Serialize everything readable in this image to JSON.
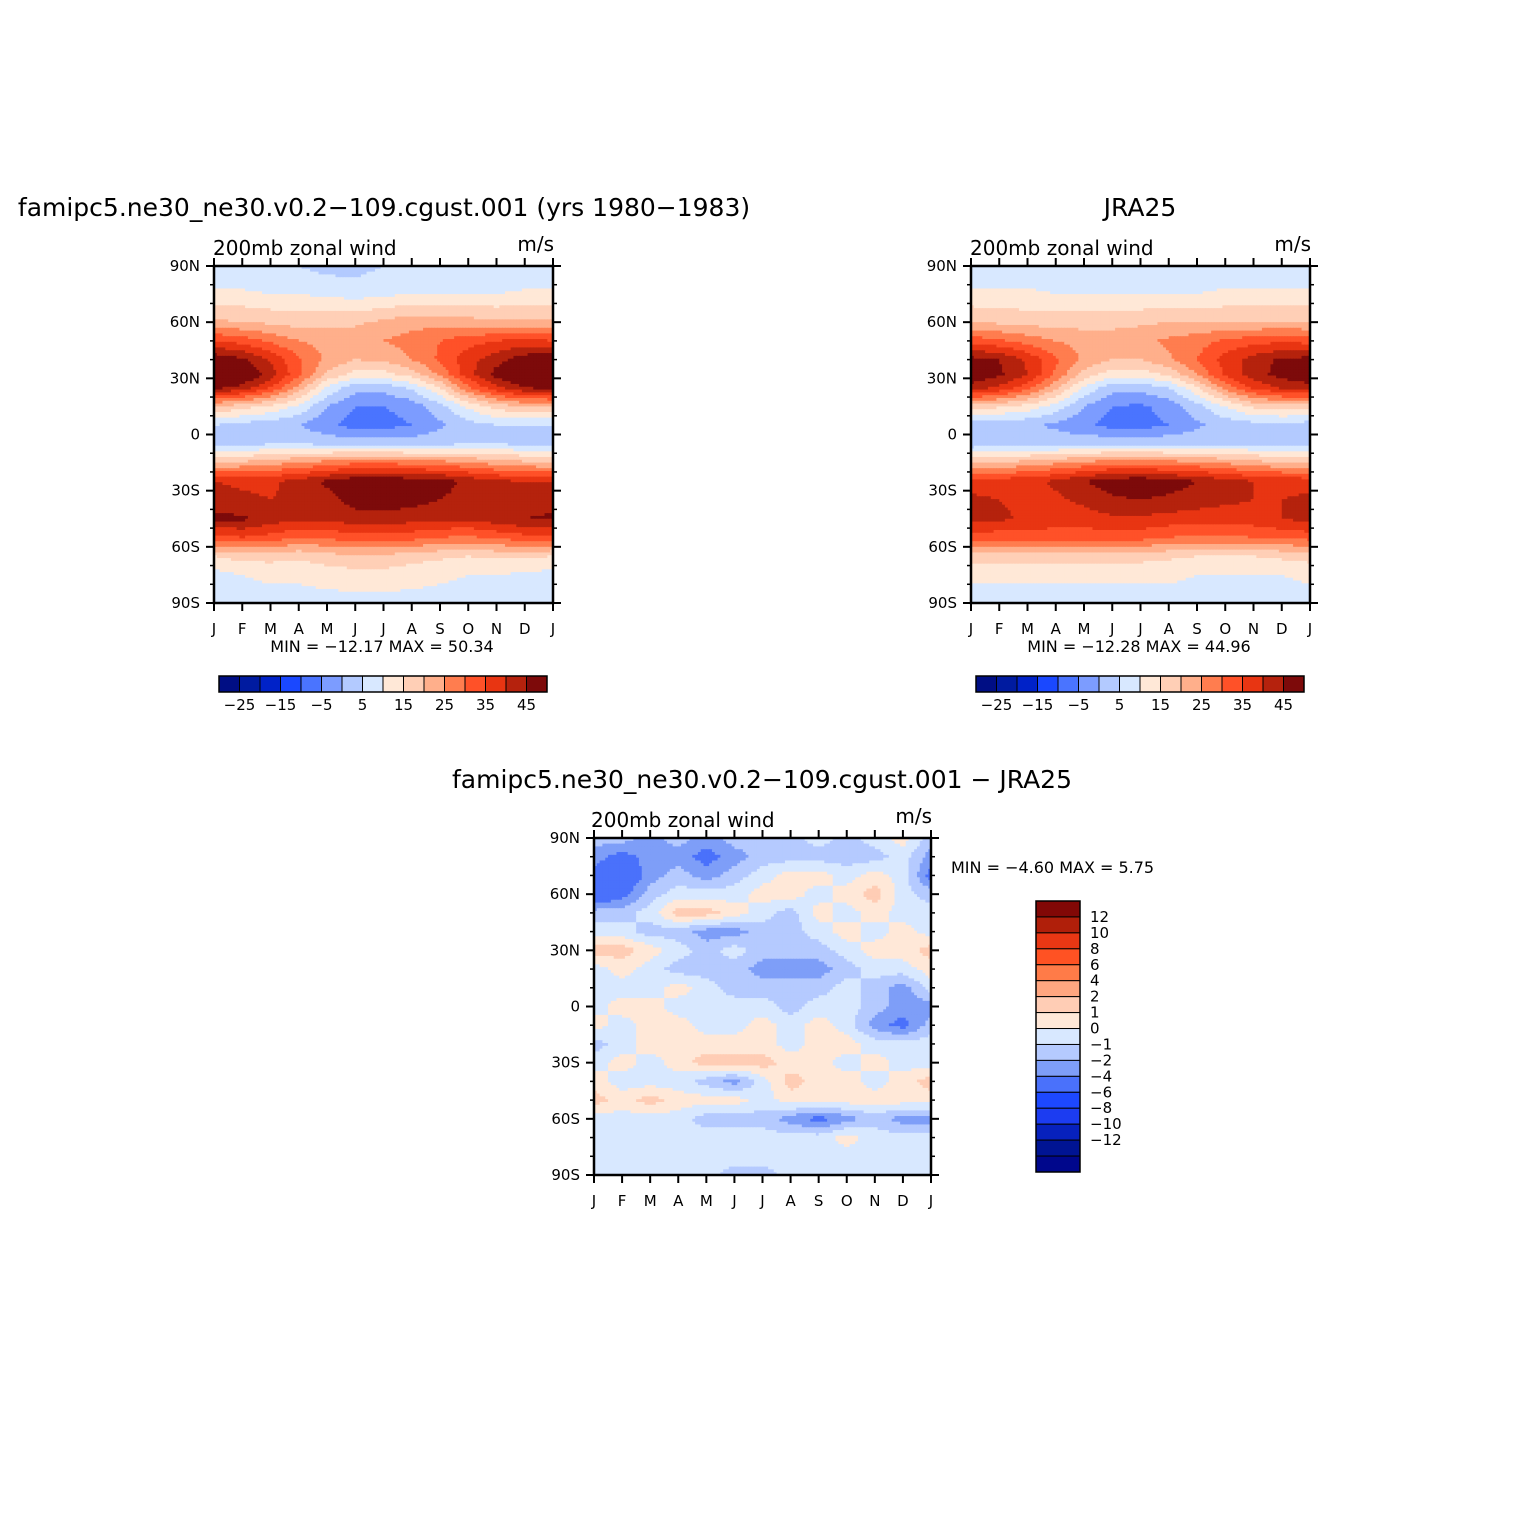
{
  "colors": {
    "levels": [
      "#000e84",
      "#001ba0",
      "#0022c8",
      "#1a48ff",
      "#4a74ff",
      "#7c9cff",
      "#b3caff",
      "#d8e8ff",
      "#ffe8d7",
      "#ffcfb6",
      "#ffaf8b",
      "#ff7d4f",
      "#ff5128",
      "#e83512",
      "#b5220d",
      "#7d0a0a"
    ],
    "diff_levels": [
      "#00078c",
      "#001493",
      "#0721bd",
      "#1c3cf1",
      "#1d48ff",
      "#4a71fb",
      "#7e9ef8",
      "#b5caff",
      "#d8e8ff",
      "#ffe8d8",
      "#ffcdb5",
      "#ffa680",
      "#ff7b48",
      "#ff5223",
      "#e93714",
      "#b01f0a",
      "#820806"
    ]
  },
  "panels": [
    {
      "title": "famipc5.ne30_ne30.v0.2−109.cgust.001 (yrs  1980−1983)",
      "subtitle": "200mb  zonal  wind",
      "units": "m/s",
      "stats": "MIN  =  −12.17  MAX  =    50.34"
    },
    {
      "title": "JRA25",
      "subtitle": "200mb  zonal  wind",
      "units": "m/s",
      "stats": "MIN  =  −12.28  MAX  =    44.96"
    },
    {
      "title": "famipc5.ne30_ne30.v0.2−109.cgust.001  −  JRA25",
      "subtitle": "200mb  zonal  wind",
      "units": "m/s",
      "stats": "MIN  =    −4.60  MAX  =     5.75"
    }
  ],
  "colorbar_labels": [
    "−25",
    "−15",
    "−5",
    "5",
    "15",
    "25",
    "35",
    "45"
  ],
  "diff_colorbar_labels": [
    "12",
    "10",
    "8",
    "6",
    "4",
    "2",
    "1",
    "0",
    "−1",
    "−2",
    "−4",
    "−6",
    "−8",
    "−10",
    "−12"
  ],
  "chart_data": [
    {
      "type": "heatmap",
      "title": "famipc5.ne30_ne30.v0.2−109.cgust.001 (yrs  1980−1983)",
      "subtitle": "200mb  zonal  wind",
      "units": "m/s",
      "x_ticks": [
        "J",
        "F",
        "M",
        "A",
        "M",
        "J",
        "J",
        "A",
        "S",
        "O",
        "N",
        "D",
        "J"
      ],
      "y_ticks": [
        "90N",
        "60N",
        "30N",
        "0",
        "30S",
        "60S",
        "90S"
      ],
      "xlim": [
        0,
        12
      ],
      "ylim": [
        -90,
        90
      ],
      "contour_levels": [
        -30,
        -25,
        -20,
        -15,
        -10,
        -5,
        0,
        5,
        10,
        15,
        20,
        25,
        30,
        35,
        40,
        45,
        50
      ],
      "stats": {
        "min": -12.17,
        "max": 50.34
      },
      "lats": [
        90,
        75,
        60,
        50,
        40,
        32,
        25,
        15,
        5,
        -5,
        -15,
        -25,
        -35,
        -45,
        -55,
        -65,
        -75,
        -90
      ],
      "values": [
        [
          0,
          0,
          0,
          0,
          -2,
          -2,
          0,
          0,
          0,
          0,
          0,
          0,
          0
        ],
        [
          6,
          6,
          5,
          5,
          4,
          3,
          4,
          5,
          5,
          5,
          5,
          6,
          6
        ],
        [
          16,
          15,
          14,
          13,
          14,
          14,
          16,
          18,
          18,
          17,
          16,
          16,
          16
        ],
        [
          30,
          28,
          24,
          20,
          18,
          18,
          20,
          22,
          25,
          28,
          30,
          32,
          30
        ],
        [
          44,
          41,
          34,
          26,
          19,
          15,
          16,
          20,
          26,
          33,
          38,
          43,
          44
        ],
        [
          50,
          46,
          38,
          26,
          14,
          8,
          8,
          12,
          21,
          33,
          42,
          48,
          50
        ],
        [
          42,
          38,
          30,
          18,
          4,
          -3,
          -3,
          1,
          10,
          24,
          34,
          40,
          42
        ],
        [
          15,
          12,
          9,
          4,
          -5,
          -10,
          -10,
          -8,
          -2,
          6,
          12,
          15,
          15
        ],
        [
          0,
          -2,
          -3,
          -5,
          -9,
          -12,
          -12,
          -10,
          -6,
          -2,
          0,
          0,
          0
        ],
        [
          -3,
          -2,
          0,
          0,
          -1,
          -2,
          -2,
          -2,
          -1,
          0,
          0,
          -1,
          -3
        ],
        [
          15,
          16,
          18,
          20,
          22,
          24,
          24,
          23,
          22,
          20,
          18,
          16,
          15
        ],
        [
          35,
          34,
          34,
          37,
          41,
          44,
          45,
          43,
          42,
          39,
          36,
          35,
          35
        ],
        [
          38,
          36,
          35,
          36,
          38,
          42,
          43,
          42,
          40,
          38,
          37,
          37,
          38
        ],
        [
          41,
          41,
          38,
          36,
          36,
          38,
          38,
          37,
          36,
          36,
          38,
          40,
          41
        ],
        [
          28,
          30,
          28,
          25,
          26,
          28,
          28,
          27,
          25,
          24,
          26,
          28,
          28
        ],
        [
          10,
          12,
          12,
          11,
          13,
          14,
          14,
          12,
          11,
          10,
          11,
          11,
          10
        ],
        [
          3,
          5,
          6,
          6,
          7,
          8,
          8,
          7,
          6,
          5,
          5,
          4,
          3
        ],
        [
          1,
          2,
          3,
          3,
          3,
          3,
          3,
          3,
          3,
          3,
          2,
          2,
          1
        ]
      ]
    },
    {
      "type": "heatmap",
      "title": "JRA25",
      "subtitle": "200mb  zonal  wind",
      "units": "m/s",
      "x_ticks": [
        "J",
        "F",
        "M",
        "A",
        "M",
        "J",
        "J",
        "A",
        "S",
        "O",
        "N",
        "D",
        "J"
      ],
      "y_ticks": [
        "90N",
        "60N",
        "30N",
        "0",
        "30S",
        "60S",
        "90S"
      ],
      "xlim": [
        0,
        12
      ],
      "ylim": [
        -90,
        90
      ],
      "contour_levels": [
        -30,
        -25,
        -20,
        -15,
        -10,
        -5,
        0,
        5,
        10,
        15,
        20,
        25,
        30,
        35,
        40,
        45,
        50
      ],
      "stats": {
        "min": -12.28,
        "max": 44.96
      },
      "lats": [
        90,
        75,
        60,
        50,
        40,
        32,
        25,
        15,
        5,
        -5,
        -15,
        -25,
        -35,
        -45,
        -55,
        -65,
        -75,
        -90
      ],
      "values": [
        [
          1,
          1,
          1,
          1,
          1,
          0,
          0,
          0,
          1,
          1,
          1,
          1,
          1
        ],
        [
          6,
          6,
          6,
          5,
          5,
          5,
          5,
          5,
          5,
          6,
          6,
          6,
          6
        ],
        [
          15,
          14,
          13,
          13,
          13,
          13,
          14,
          15,
          15,
          15,
          15,
          15,
          15
        ],
        [
          28,
          26,
          23,
          20,
          18,
          18,
          19,
          21,
          23,
          26,
          28,
          29,
          28
        ],
        [
          42,
          40,
          34,
          26,
          19,
          15,
          15,
          19,
          25,
          32,
          37,
          41,
          42
        ],
        [
          44,
          41,
          35,
          24,
          13,
          7,
          7,
          11,
          20,
          31,
          38,
          42,
          44
        ],
        [
          38,
          34,
          27,
          16,
          4,
          -3,
          -3,
          0,
          9,
          22,
          31,
          36,
          38
        ],
        [
          13,
          11,
          8,
          3,
          -5,
          -10,
          -11,
          -8,
          -2,
          5,
          11,
          13,
          13
        ],
        [
          -3,
          -4,
          -4,
          -6,
          -9,
          -12,
          -12,
          -10,
          -6,
          -3,
          -2,
          -2,
          -3
        ],
        [
          -3,
          -3,
          -2,
          -2,
          -1,
          -1,
          -1,
          -1,
          -1,
          -1,
          -1,
          -2,
          -3
        ],
        [
          14,
          15,
          17,
          19,
          21,
          23,
          23,
          22,
          21,
          19,
          17,
          15,
          14
        ],
        [
          33,
          33,
          33,
          36,
          40,
          43,
          44,
          42,
          40,
          37,
          35,
          34,
          33
        ],
        [
          36,
          35,
          34,
          34,
          36,
          39,
          40,
          39,
          38,
          36,
          35,
          35,
          36
        ],
        [
          37,
          36,
          34,
          33,
          33,
          34,
          34,
          33,
          32,
          32,
          33,
          35,
          37
        ],
        [
          27,
          27,
          27,
          27,
          27,
          27,
          27,
          25,
          24,
          24,
          25,
          26,
          27
        ],
        [
          12,
          12,
          12,
          12,
          12,
          12,
          12,
          11,
          10,
          10,
          10,
          11,
          12
        ],
        [
          6,
          6,
          6,
          6,
          6,
          6,
          6,
          6,
          5,
          5,
          5,
          5,
          6
        ],
        [
          3,
          3,
          3,
          3,
          3,
          3,
          3,
          3,
          3,
          3,
          3,
          3,
          3
        ]
      ]
    },
    {
      "type": "heatmap",
      "title": "famipc5.ne30_ne30.v0.2−109.cgust.001  −  JRA25",
      "subtitle": "200mb  zonal  wind",
      "units": "m/s",
      "x_ticks": [
        "J",
        "F",
        "M",
        "A",
        "M",
        "J",
        "J",
        "A",
        "S",
        "O",
        "N",
        "D",
        "J"
      ],
      "y_ticks": [
        "90N",
        "60N",
        "30N",
        "0",
        "30S",
        "60S",
        "90S"
      ],
      "xlim": [
        0,
        12
      ],
      "ylim": [
        -90,
        90
      ],
      "contour_levels": [
        -12,
        -10,
        -8,
        -6,
        -4,
        -2,
        -1,
        0,
        1,
        2,
        4,
        6,
        8,
        10,
        12
      ],
      "stats": {
        "min": -4.6,
        "max": 5.75
      },
      "lats": [
        90,
        80,
        70,
        60,
        50,
        40,
        30,
        20,
        10,
        0,
        -10,
        -20,
        -30,
        -40,
        -50,
        -60,
        -70,
        -80,
        -90
      ],
      "values": [
        [
          -0.5,
          -0.5,
          -1.5,
          -0.5,
          -1.5,
          -0.5,
          -0.5,
          -0.5,
          0.5,
          -0.5,
          0.5,
          1.5,
          -0.5
        ],
        [
          -1.5,
          -2.5,
          -1.5,
          -1.5,
          -2.5,
          -1.5,
          -0.5,
          -0.5,
          -0.5,
          -0.5,
          -0.5,
          0.5,
          -1.5
        ],
        [
          -2.5,
          -3.5,
          -1.5,
          -0.5,
          -1.5,
          -0.5,
          0.5,
          1.5,
          1.5,
          0.5,
          1.5,
          0.5,
          -2.5
        ],
        [
          -3.5,
          -2.5,
          -0.5,
          0.5,
          0.5,
          0.5,
          1.5,
          1.5,
          0.5,
          1.5,
          2.5,
          0.5,
          -0.5
        ],
        [
          -0.5,
          -0.5,
          0.5,
          2.5,
          2.5,
          1.5,
          0.5,
          -0.5,
          1.5,
          0.5,
          1.5,
          0.5,
          0.5
        ],
        [
          0.5,
          0.5,
          -0.5,
          -0.5,
          -1.5,
          -1.5,
          -0.5,
          -0.5,
          0.5,
          1.5,
          0.5,
          1.5,
          0.5
        ],
        [
          2.5,
          2.5,
          1.5,
          0.5,
          -0.5,
          0.5,
          -0.5,
          -0.5,
          -0.5,
          0.5,
          1.5,
          1.5,
          2.5
        ],
        [
          0.5,
          1.5,
          0.5,
          -0.5,
          -0.5,
          -0.5,
          -1.5,
          -1.5,
          -1.5,
          -0.5,
          0.5,
          0.5,
          1.5
        ],
        [
          0.5,
          0.5,
          0.5,
          1.5,
          0.5,
          -0.5,
          -0.5,
          -0.5,
          -0.5,
          0.5,
          -0.5,
          -1.5,
          0.5
        ],
        [
          0.5,
          1.5,
          1.5,
          0.5,
          0.5,
          0.5,
          0.5,
          -0.5,
          0.5,
          0.5,
          -0.5,
          -1.5,
          -1.5
        ],
        [
          1.5,
          0.5,
          1.5,
          1.5,
          0.5,
          0.5,
          1.5,
          0.5,
          1.5,
          0.5,
          -1.5,
          -2.5,
          -0.5
        ],
        [
          -0.5,
          0.5,
          1.5,
          1.5,
          1.5,
          1.5,
          1.5,
          0.5,
          1.5,
          1.5,
          0.5,
          0.5,
          0.5
        ],
        [
          0.5,
          1.5,
          0.5,
          1.5,
          2.5,
          2.5,
          2.5,
          1.5,
          1.5,
          0.5,
          1.5,
          0.5,
          0.5
        ],
        [
          1.5,
          0.5,
          0.5,
          0.5,
          -0.5,
          -1.5,
          0.5,
          2.5,
          1.5,
          1.5,
          0.5,
          1.5,
          2.5
        ],
        [
          2.5,
          1.5,
          2.5,
          1.5,
          1.5,
          1.5,
          0.5,
          1.5,
          1.5,
          1.5,
          1.5,
          1.5,
          1.5
        ],
        [
          0.5,
          0.5,
          0.5,
          0.5,
          -0.5,
          -0.5,
          -0.5,
          -1.5,
          -2.5,
          -1.5,
          -0.5,
          -1.5,
          -1.5
        ],
        [
          0.5,
          0.5,
          0.5,
          0.5,
          0.5,
          0.5,
          0.5,
          0.5,
          0.5,
          1.5,
          0.5,
          0.5,
          0.5
        ],
        [
          0.5,
          0.5,
          0.5,
          0.5,
          0.5,
          0.5,
          0.5,
          0.5,
          0.5,
          0.5,
          0.5,
          0.5,
          0.5
        ],
        [
          0.5,
          0.5,
          0.5,
          0.5,
          0.5,
          -0.5,
          -0.5,
          0.5,
          0.5,
          0.5,
          0.5,
          0.5,
          0.5
        ]
      ]
    }
  ]
}
